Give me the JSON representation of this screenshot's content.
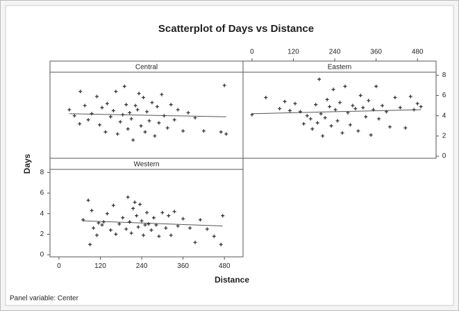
{
  "chart_data": {
    "type": "scatter",
    "title": "Scatterplot of Days vs Distance",
    "xlabel": "Distance",
    "ylabel": "Days",
    "footnote": "Panel variable: Center",
    "color": "#333333",
    "fit_color": "#555555",
    "xlim": [
      -26,
      534
    ],
    "xticks": [
      0,
      120,
      240,
      360,
      480
    ],
    "ylim": [
      -0.2,
      8.3
    ],
    "yticks": [
      0,
      2,
      4,
      6,
      8
    ],
    "panels": [
      {
        "name": "Central",
        "x": [
          30,
          45,
          60,
          62,
          75,
          85,
          95,
          110,
          118,
          125,
          135,
          140,
          150,
          158,
          165,
          170,
          178,
          185,
          190,
          195,
          200,
          205,
          210,
          215,
          222,
          228,
          232,
          238,
          245,
          250,
          255,
          262,
          270,
          278,
          285,
          290,
          298,
          305,
          315,
          325,
          335,
          345,
          360,
          375,
          395,
          420,
          470,
          480,
          485
        ],
        "y": [
          4.6,
          4.0,
          3.2,
          6.4,
          5.0,
          3.6,
          4.2,
          5.9,
          3.1,
          4.8,
          2.4,
          5.2,
          3.9,
          4.5,
          6.4,
          2.2,
          3.4,
          4.1,
          6.9,
          5.1,
          2.7,
          4.3,
          3.7,
          1.6,
          5.0,
          4.6,
          6.2,
          3.0,
          5.8,
          2.4,
          4.4,
          3.5,
          5.3,
          2.0,
          4.9,
          3.3,
          6.1,
          4.0,
          2.8,
          5.1,
          3.6,
          4.6,
          2.5,
          4.3,
          3.8,
          2.5,
          2.4,
          7.0,
          2.2
        ],
        "fit": {
          "x": [
            30,
            485
          ],
          "y": [
            4.2,
            3.9
          ]
        }
      },
      {
        "name": "Eastern",
        "x": [
          0,
          40,
          80,
          95,
          110,
          125,
          140,
          150,
          160,
          170,
          175,
          185,
          190,
          195,
          200,
          205,
          212,
          218,
          225,
          230,
          236,
          242,
          248,
          255,
          262,
          270,
          278,
          285,
          292,
          300,
          308,
          315,
          322,
          330,
          338,
          345,
          352,
          360,
          368,
          378,
          390,
          400,
          415,
          430,
          445,
          460,
          470,
          480,
          490
        ],
        "y": [
          4.1,
          5.8,
          4.7,
          5.4,
          4.5,
          5.2,
          4.4,
          3.2,
          4.0,
          3.7,
          2.7,
          5.1,
          3.3,
          7.6,
          4.2,
          2.0,
          3.8,
          5.6,
          4.9,
          3.0,
          6.6,
          4.6,
          3.5,
          5.3,
          2.3,
          6.9,
          4.3,
          3.1,
          5.0,
          4.7,
          2.5,
          6.0,
          4.8,
          3.9,
          5.5,
          2.1,
          4.6,
          6.9,
          3.7,
          5.0,
          4.4,
          2.9,
          5.8,
          4.8,
          2.8,
          5.9,
          4.6,
          5.2,
          4.9
        ],
        "fit": {
          "x": [
            0,
            490
          ],
          "y": [
            4.2,
            4.6
          ]
        }
      },
      {
        "name": "Western",
        "x": [
          70,
          85,
          90,
          95,
          100,
          110,
          115,
          125,
          130,
          140,
          150,
          158,
          165,
          175,
          185,
          195,
          200,
          205,
          210,
          215,
          220,
          225,
          230,
          235,
          240,
          245,
          250,
          255,
          260,
          268,
          275,
          282,
          290,
          300,
          310,
          318,
          325,
          335,
          345,
          360,
          380,
          395,
          410,
          430,
          450,
          470,
          475
        ],
        "y": [
          3.4,
          5.3,
          1.0,
          4.3,
          2.6,
          1.9,
          3.1,
          2.9,
          3.2,
          4.0,
          2.4,
          4.8,
          2.0,
          3.0,
          3.6,
          2.5,
          5.6,
          3.2,
          2.1,
          4.5,
          5.1,
          3.8,
          2.7,
          4.9,
          3.3,
          1.9,
          2.9,
          4.1,
          3.0,
          2.4,
          3.6,
          2.9,
          1.8,
          4.1,
          2.6,
          3.8,
          1.9,
          4.2,
          2.8,
          3.5,
          2.6,
          1.2,
          3.4,
          2.5,
          1.8,
          1.0,
          3.8
        ],
        "fit": {
          "x": [
            70,
            475
          ],
          "y": [
            3.3,
            2.8
          ]
        }
      }
    ]
  }
}
